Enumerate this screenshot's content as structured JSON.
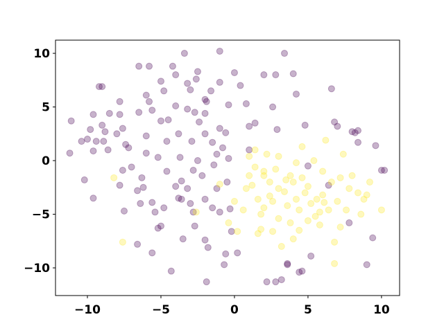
{
  "chart_data": {
    "type": "scatter",
    "xlim": [
      -12.17,
      11.23
    ],
    "ylim": [
      -12.58,
      11.23
    ],
    "xticks": [
      {
        "value": -10,
        "label": "−10"
      },
      {
        "value": -5,
        "label": "−5"
      },
      0,
      5,
      10
    ],
    "yticks": [
      {
        "value": -10,
        "label": "−10"
      },
      {
        "value": -5,
        "label": "−5"
      },
      0,
      5,
      10
    ],
    "alpha": 0.3,
    "series": [
      {
        "color": "#440154",
        "x": [
          -11.1,
          -11.2,
          -10.4,
          -10.2,
          -10,
          -9.8,
          -9.6,
          -9.6,
          -9.4,
          -9.2,
          -9,
          -9,
          -8.8,
          -8.9,
          -8.6,
          -8.5,
          -9.6,
          -8,
          -7.8,
          -7.8,
          -7.6,
          -7.4,
          -7.8,
          -7.6,
          -7.2,
          -7.5,
          -6.5,
          -6.5,
          -6.3,
          -6.6,
          -6.4,
          -6.2,
          -6,
          -6,
          -5.8,
          -5.6,
          -5.8,
          -5.6,
          -5.4,
          -5.2,
          -5,
          -5,
          -5,
          -4.8,
          -4.6,
          -4.6,
          -4.8,
          -4.5,
          -4.3,
          -4.2,
          -4,
          -4,
          -3.8,
          -3.7,
          -3.6,
          -3.5,
          -3.6,
          -3.4,
          -3.2,
          -3,
          -3.2,
          -3,
          -2.8,
          -2.9,
          -2.7,
          -2.5,
          -2.7,
          -2.4,
          -2.5,
          -2.2,
          -2,
          -2,
          -1.9,
          -1.8,
          -2,
          -1.6,
          -1.5,
          -1.2,
          -1,
          -1,
          -1,
          -1.2,
          -1,
          -0.7,
          -0.8,
          -0.5,
          -0.4,
          -0.3,
          -0.2,
          0,
          0.2,
          0.4,
          0.8,
          1,
          1,
          1.4,
          2,
          2.2,
          2.6,
          2.8,
          2.9,
          3.4,
          3.6,
          4,
          4.2,
          4.4,
          4.6,
          4.8,
          6.6,
          6.8,
          7,
          8,
          8.2,
          8.4,
          8.4,
          9.6,
          9.4,
          9,
          10,
          10.2,
          2.8,
          3.2,
          3.6,
          5.2,
          6.4,
          7.8,
          5,
          -2.8,
          -3.8,
          -6.6,
          -5.6,
          -1.9,
          -0.6,
          -2,
          -1.5,
          -0.4,
          -0.6,
          -1.4,
          -3.2,
          -4,
          -5.2,
          -6,
          -7,
          -2.6,
          -2
        ],
        "values": [
          3.7,
          0.7,
          1.8,
          -1.8,
          2,
          2.9,
          4.3,
          0.9,
          1.8,
          6.9,
          6.9,
          3.3,
          2.7,
          1.8,
          1,
          4.4,
          -3.5,
          2.5,
          4.3,
          5.5,
          3,
          1.5,
          -2.3,
          -0.9,
          1.2,
          -4.7,
          8.8,
          4.5,
          -1.6,
          -2.8,
          -4,
          -2.5,
          6.1,
          0.7,
          5.5,
          4.7,
          8.8,
          -3.9,
          -4.8,
          -6.3,
          -6.1,
          7.4,
          3.7,
          6.5,
          1.8,
          -1,
          -4.4,
          3.8,
          -10.3,
          8.8,
          8,
          5.1,
          2.5,
          0.3,
          -3.6,
          -7.3,
          -1.9,
          10,
          7.2,
          6.6,
          -2.6,
          -4,
          -0.9,
          1.8,
          4.5,
          8.3,
          -6.1,
          3.6,
          0,
          -1.4,
          -3.6,
          -7.4,
          5.5,
          -8.1,
          2.5,
          6.5,
          -4.4,
          0.6,
          10.2,
          7.3,
          3,
          -2.6,
          -4.8,
          -9.7,
          1.2,
          -2,
          5.2,
          -4.5,
          -6.6,
          8.2,
          -8.6,
          7,
          5.3,
          3.2,
          1,
          3.5,
          8,
          -11.3,
          5,
          8,
          2.9,
          10,
          -9.6,
          8.1,
          6.2,
          -10.4,
          -10.3,
          3.3,
          6.7,
          3.6,
          3.2,
          2.7,
          2.6,
          1.7,
          2.8,
          1.4,
          -7.2,
          -9.7,
          -0.9,
          -0.9,
          -11.3,
          -11.1,
          -9.7,
          -8.9,
          -2.3,
          -5.8,
          -0.5,
          -4.8,
          -3.5,
          -7.8,
          -8.6,
          -11.3,
          -8.7,
          4.4,
          1.7,
          0.2,
          2.6,
          -0.4,
          4.8,
          -2.4,
          0.3,
          2.3,
          -0.6,
          7.6,
          5.7
        ]
      },
      {
        "color": "#fde725",
        "x": [
          -8.2,
          -7.6,
          -2.6,
          -1,
          0,
          -0.4,
          0.2,
          0.6,
          0.8,
          1,
          1,
          1.2,
          1.4,
          1.4,
          1.6,
          1.8,
          1.8,
          2,
          2,
          2.2,
          2.4,
          2.6,
          2.6,
          2.8,
          3,
          3,
          3.2,
          3.4,
          3.6,
          3.8,
          3.8,
          4,
          4,
          4.2,
          4.4,
          4.4,
          4.6,
          4.6,
          4.8,
          5,
          5,
          5.2,
          5.4,
          5.6,
          5.8,
          5.8,
          6,
          6,
          6.2,
          6.4,
          6.6,
          6.8,
          6.8,
          7,
          7.2,
          7.4,
          7.6,
          7.8,
          8,
          8.4,
          8.6,
          9,
          9.2,
          10,
          3,
          2,
          4.2,
          1.6,
          3.5,
          5.5,
          6.1,
          7.2,
          8.8,
          2.4
        ],
        "values": [
          -1.6,
          -7.6,
          -4.8,
          -2.2,
          -3.8,
          -5.8,
          -6.6,
          -4.6,
          -2.6,
          0.4,
          -1.4,
          -2.3,
          1,
          -0.6,
          -3.6,
          -5,
          -6.4,
          -4.4,
          -1.4,
          0.6,
          -2,
          -3.8,
          -6.6,
          -0.8,
          -2.6,
          -5.4,
          -8,
          -2.9,
          -4.2,
          -1.4,
          -5.8,
          -2,
          -7.3,
          -3.6,
          -4.6,
          -6.5,
          1.3,
          -1.6,
          -3,
          -2.4,
          -5.6,
          -4,
          0,
          -3.6,
          -4.8,
          -6,
          -1,
          -3.2,
          1.9,
          -4.6,
          -2,
          -7.6,
          -9.6,
          -3.8,
          -1.6,
          0.6,
          -4.6,
          -2.6,
          -1.4,
          -3,
          -5,
          -3.2,
          -2,
          -4.6,
          0.4,
          -1,
          -0.2,
          -6.8,
          -1.8,
          -5.2,
          -3.9,
          -6.2,
          -3.6,
          -3.3
        ]
      }
    ]
  }
}
